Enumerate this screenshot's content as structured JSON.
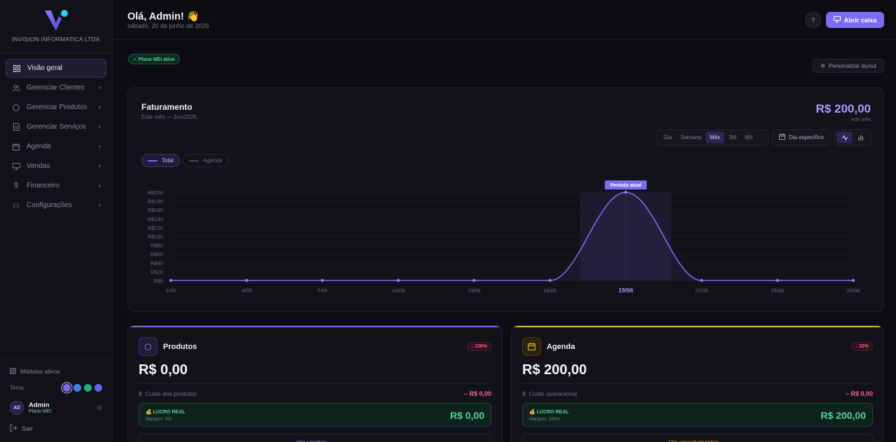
{
  "sidebar": {
    "company": "INVISION INFORMATICA LTDA",
    "items": [
      {
        "label": "Visão geral",
        "icon": "grid-icon",
        "active": true
      },
      {
        "label": "Gerenciar Clientes",
        "icon": "users-icon"
      },
      {
        "label": "Gerenciar Produtos",
        "icon": "box-icon"
      },
      {
        "label": "Gerenciar Serviços",
        "icon": "file-icon"
      },
      {
        "label": "Agenda",
        "icon": "calendar-icon"
      },
      {
        "label": "Vendas",
        "icon": "monitor-icon"
      },
      {
        "label": "Financeiro",
        "icon": "dollar-icon"
      },
      {
        "label": "Configurações",
        "icon": "settings-icon"
      }
    ],
    "modules_label": "Módulos ativos",
    "theme_label": "Tema",
    "theme_colors": [
      "#7c6cf5",
      "#3b82f6",
      "#10b981",
      "#6366f1"
    ],
    "user": {
      "initials": "AD",
      "name": "Admin",
      "plan": "Plano MEI"
    },
    "logout_label": "Sair"
  },
  "header": {
    "greeting": "Olá, Admin! 👋",
    "date": "sábado, 20 de junho de 2026",
    "help_icon": "question-icon",
    "open_button": "Abrir caixa"
  },
  "plan_badge": "✓ Plano MEI ativo",
  "layout_button": "Personalizar layout",
  "revenue": {
    "title": "Faturamento",
    "subtitle": "Este mês — Jun/2026",
    "total": "R$ 200,00",
    "total_label": "este mês",
    "periods": [
      "Dia",
      "Semana",
      "Mês",
      "3M",
      "6M"
    ],
    "active_period": "Mês",
    "specific_day": "Dia específico",
    "legend": [
      "Total",
      "Agenda"
    ],
    "highlight_label": "Período atual"
  },
  "chart_data": {
    "type": "area",
    "x": [
      "1/06",
      "4/06",
      "7/06",
      "10/06",
      "13/06",
      "16/06",
      "19/06",
      "22/06",
      "25/06",
      "28/06"
    ],
    "series": [
      {
        "name": "Total",
        "values": [
          0,
          0,
          0,
          0,
          0,
          0,
          200,
          0,
          0,
          0
        ],
        "color": "#7c6cf5"
      }
    ],
    "y_ticks": [
      "R$0",
      "R$20",
      "R$40",
      "R$60",
      "R$80",
      "R$100",
      "R$120",
      "R$140",
      "R$160",
      "R$180",
      "R$200"
    ],
    "ylim": [
      0,
      200
    ],
    "highlight_category": "19/06",
    "grid": true
  },
  "cards": [
    {
      "title": "Produtos",
      "badge": "↓ 100%",
      "value": "R$ 0,00",
      "cost_label": "Custo dos produtos",
      "cost_value": "– R$ 0,00",
      "profit_label": "💰 LUCRO REAL",
      "margin": "Margem: 0%",
      "profit_value": "R$ 0,00",
      "link": "Ver vendas →",
      "accent": "#7c6cf5"
    },
    {
      "title": "Agenda",
      "badge": "↓ 32%",
      "value": "R$ 200,00",
      "cost_label": "Custo operacional",
      "cost_value": "– R$ 0,00",
      "profit_label": "💰 LUCRO REAL",
      "margin": "Margem: 100%",
      "profit_value": "R$ 200,00",
      "link": "Ver agendamentos →",
      "accent": "#f0b429"
    }
  ]
}
